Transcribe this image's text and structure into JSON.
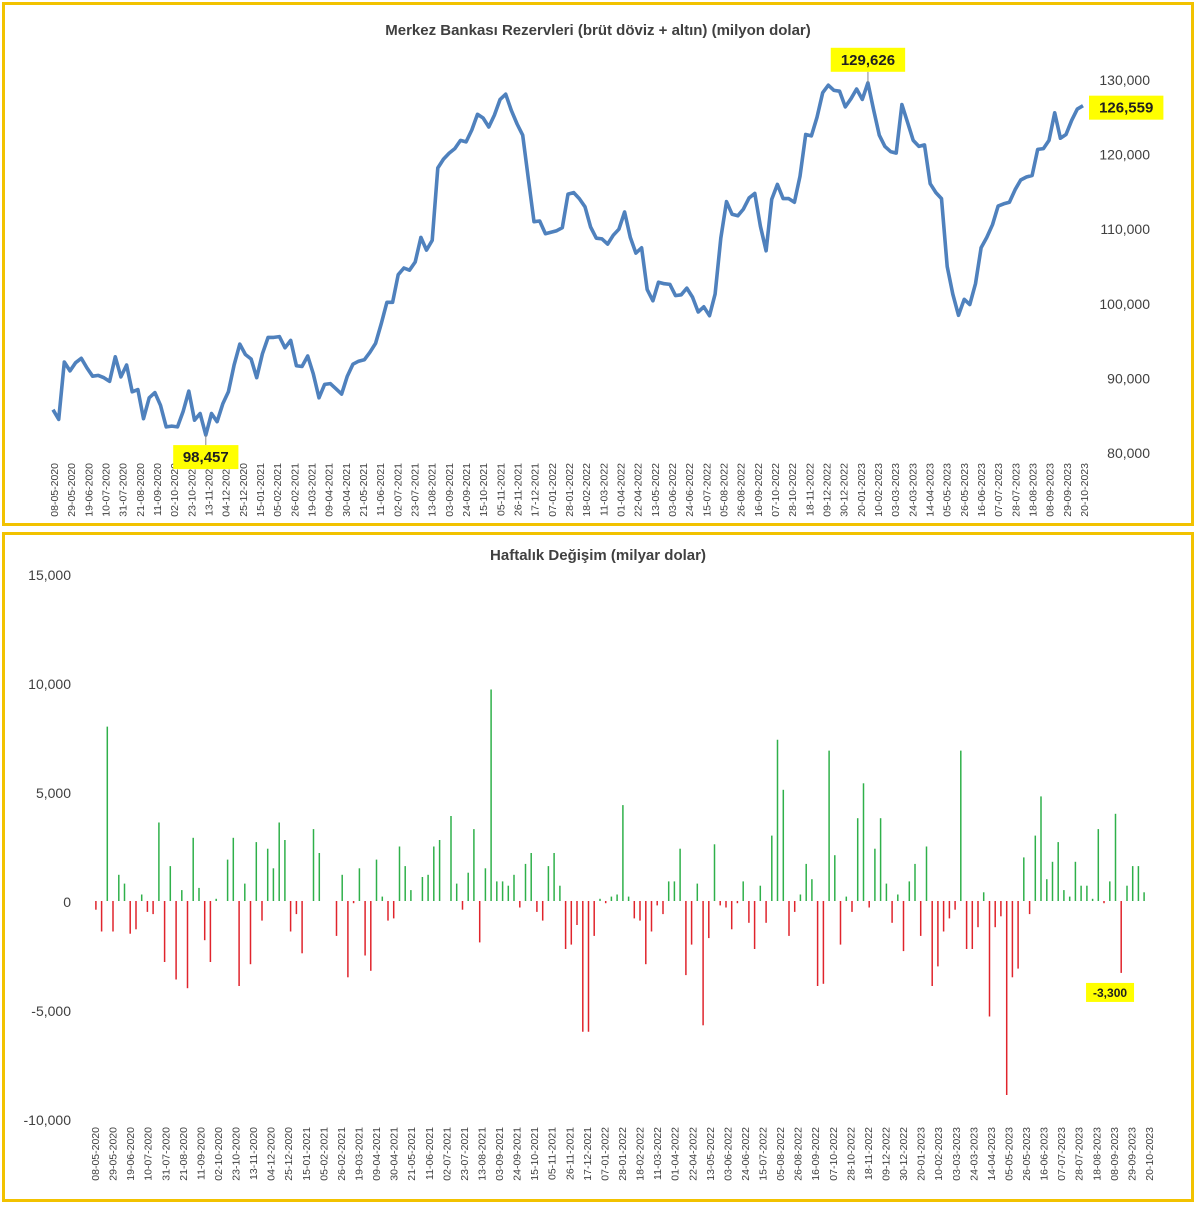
{
  "colors": {
    "line": "#4f81bd",
    "positive": "#2fb04a",
    "negative": "#e0242c",
    "frame": "#f2c200",
    "highlight": "#ffff00"
  },
  "chart_data": [
    {
      "type": "line",
      "title": "Merkez Bankası Rezervleri (brüt döviz + altın) (milyon dolar)",
      "xlabel": "",
      "ylabel": "",
      "ylim": [
        80000,
        130000
      ],
      "y_ticks": [
        "80,000",
        "90,000",
        "100,000",
        "110,000",
        "120,000",
        "130,000"
      ],
      "y_axis_side": "right",
      "grid": false,
      "x_tick_labels": [
        "08-05-2020",
        "29-05-2020",
        "19-06-2020",
        "10-07-2020",
        "31-07-2020",
        "21-08-2020",
        "11-09-2020",
        "02-10-2020",
        "23-10-2020",
        "13-11-2020",
        "04-12-2020",
        "25-12-2020",
        "15-01-2021",
        "05-02-2021",
        "26-02-2021",
        "19-03-2021",
        "09-04-2021",
        "30-04-2021",
        "21-05-2021",
        "11-06-2021",
        "02-07-2021",
        "23-07-2021",
        "13-08-2021",
        "03-09-2021",
        "24-09-2021",
        "15-10-2021",
        "05-11-2021",
        "26-11-2021",
        "17-12-2021",
        "07-01-2022",
        "28-01-2022",
        "18-02-2022",
        "11-03-2022",
        "01-04-2022",
        "22-04-2022",
        "13-05-2022",
        "03-06-2022",
        "24-06-2022",
        "15-07-2022",
        "05-08-2022",
        "26-08-2022",
        "16-09-2022",
        "07-10-2022",
        "28-10-2022",
        "18-11-2022",
        "09-12-2022",
        "30-12-2022",
        "20-01-2023",
        "10-02-2023",
        "03-03-2023",
        "24-03-2023",
        "14-04-2023",
        "05-05-2023",
        "26-05-2023",
        "16-06-2023",
        "07-07-2023",
        "28-07-2023",
        "18-08-2023",
        "08-09-2023",
        "29-09-2023",
        "20-10-2023"
      ],
      "x_tick_labels_shown": [
        "08-05-2020",
        "29-05-2020",
        "19-06-2020",
        "10-07-2020",
        "31-07-2020",
        "21-08-2020",
        "11-09-2020",
        "02-10-2020",
        "23-10-2020",
        "13-11-2020",
        "04-12-2020",
        "25-12-2020",
        "15-01-2021",
        "05-02-2021",
        "26-02-2021",
        "19-03-2021",
        "09-04-2021",
        "30-04-2021",
        "21-05-2021",
        "11-06-2021",
        "02-07-2021",
        "23-07-2021",
        "13-08-2021",
        "03-09-2021",
        "24-09-2021",
        "15-10-2021",
        "05-11-2021",
        "26-11-2021",
        "17-12-2021",
        "07-01-2022",
        "28-01-2022",
        "18-02-2022",
        "11-03-2022",
        "01-04-2022",
        "22-04-2022",
        "13-05-2022",
        "03-06-2022",
        "24-06-2022",
        "15-07-2022",
        "05-08-2022",
        "26-08-2022",
        "16-09-2022",
        "07-10-2022",
        "28-10-2022",
        "18-11-2022",
        "09-12-2022",
        "30-12-2022",
        "20-01-2023",
        "10-02-2023",
        "03-03-2023",
        "24-03-2023",
        "14-04-2023",
        "05-05-2023",
        "26-05-2023",
        "16-06-2023",
        "07-07-2023",
        "28-07-2023",
        "18-08-2023",
        "08-09-2023",
        "29-09-2023",
        "20-10-2023"
      ],
      "series": [
        {
          "values": [
            85800,
            84500,
            92200,
            91000,
            92100,
            92700,
            91400,
            90300,
            90400,
            90100,
            89600,
            92900,
            90200,
            91800,
            88200,
            88500,
            84600,
            87400,
            88100,
            86400,
            83500,
            83600,
            83500,
            85600,
            88300,
            84400,
            85300,
            82400,
            85300,
            84200,
            86600,
            88200,
            91800,
            94600,
            93200,
            92600,
            90100,
            93300,
            95500,
            95500,
            95600,
            94100,
            95100,
            91700,
            91600,
            93000,
            90600,
            87400,
            89200,
            89300,
            88600,
            87900,
            90300,
            91900,
            92300,
            92500,
            93500,
            94700,
            97300,
            100200,
            100200,
            103900,
            104800,
            104500,
            105600,
            108900,
            107200,
            108500,
            118200,
            119400,
            120200,
            120800,
            121900,
            121700,
            123300,
            125400,
            124900,
            123700,
            125300,
            127400,
            128100,
            125900,
            124100,
            122600,
            116700,
            111000,
            111100,
            109400,
            109600,
            109800,
            110200,
            114700,
            114900,
            114100,
            113000,
            110300,
            108800,
            108700,
            108000,
            109200,
            110000,
            112300,
            108900,
            106800,
            107500,
            101900,
            100400,
            102900,
            102700,
            102600,
            101100,
            101200,
            102100,
            100900,
            98900,
            99600,
            98400,
            101300,
            108800,
            113700,
            112000,
            111800,
            112700,
            114200,
            114800,
            110400,
            107100,
            114000,
            116000,
            114100,
            114100,
            113600,
            117100,
            122700,
            122500,
            125000,
            128300,
            129300,
            128600,
            128500,
            126400,
            127500,
            128800,
            127400,
            129626,
            126000,
            122600,
            121100,
            120400,
            120200,
            126700,
            124300,
            121900,
            121100,
            121300,
            116100,
            114900,
            114100,
            105000,
            101300,
            98457,
            100600,
            99900,
            102700,
            107500,
            108900,
            110600,
            113100,
            113400,
            113600,
            115300,
            116600,
            117000,
            117200,
            120700,
            120800,
            121900,
            125600,
            122200,
            122700,
            124600,
            126100,
            126559
          ]
        }
      ],
      "annotations": [
        {
          "label": "129,626",
          "value": 129626,
          "position": "max"
        },
        {
          "label": "98,457",
          "value": 98457,
          "position": "min"
        },
        {
          "label": "126,559",
          "value": 126559,
          "position": "last"
        }
      ]
    },
    {
      "type": "bar",
      "title": "Haftalık Değişim (milyar dolar)",
      "xlabel": "",
      "ylabel": "",
      "ylim": [
        -10000,
        15000
      ],
      "y_ticks": [
        "-10,000",
        "-5,000",
        "0",
        "5,000",
        "10,000",
        "15,000"
      ],
      "y_axis_side": "left",
      "grid": false,
      "x_tick_labels": [
        "08-05-2020",
        "29-05-2020",
        "19-06-2020",
        "10-07-2020",
        "31-07-2020",
        "21-08-2020",
        "11-09-2020",
        "02-10-2020",
        "23-10-2020",
        "13-11-2020",
        "04-12-2020",
        "25-12-2020",
        "15-01-2021",
        "05-02-2021",
        "26-02-2021",
        "19-03-2021",
        "09-04-2021",
        "30-04-2021",
        "21-05-2021",
        "11-06-2021",
        "02-07-2021",
        "23-07-2021",
        "13-08-2021",
        "03-09-2021",
        "24-09-2021",
        "15-10-2021",
        "05-11-2021",
        "26-11-2021",
        "17-12-2021",
        "07-01-2022",
        "28-01-2022",
        "18-02-2022",
        "11-03-2022",
        "01-04-2022",
        "22-04-2022",
        "13-05-2022",
        "03-06-2022",
        "24-06-2022",
        "15-07-2022",
        "05-08-2022",
        "26-08-2022",
        "16-09-2022",
        "07-10-2022",
        "28-10-2022",
        "18-11-2022",
        "09-12-2022",
        "30-12-2022",
        "20-01-2023",
        "10-02-2023",
        "03-03-2023",
        "24-03-2023",
        "14-04-2023",
        "05-05-2023",
        "26-05-2023",
        "16-06-2023",
        "07-07-2023",
        "28-07-2023",
        "18-08-2023",
        "08-09-2023",
        "29-09-2023",
        "20-10-2023"
      ],
      "x_tick_labels_shown": [
        "08-05-2020",
        "29-05-2020",
        "19-06-2020",
        "10-07-2020",
        "31-07-2020",
        "21-08-2020",
        "11-09-2020",
        "02-10-2020",
        "23-10-2020",
        "13-11-2020",
        "04-12-2020",
        "25-12-2020",
        "15-01-2021",
        "05-02-2021",
        "26-02-2021",
        "19-03-2021",
        "09-04-2021",
        "30-04-2021",
        "21-05-2021",
        "11-06-2021",
        "02-07-2021",
        "23-07-2021",
        "13-08-2021",
        "03-09-2021",
        "24-09-2021",
        "15-10-2021",
        "05-11-2021",
        "26-11-2021",
        "17-12-2021",
        "07-01-2022",
        "28-01-2022",
        "18-02-2022",
        "11-03-2022",
        "01-04-2022",
        "22-04-2022",
        "13-05-2022",
        "03-06-2022",
        "24-06-2022",
        "15-07-2022",
        "05-08-2022",
        "26-08-2022",
        "16-09-2022",
        "07-10-2022",
        "28-10-2022",
        "18-11-2022",
        "09-12-2022",
        "30-12-2022",
        "20-01-2023",
        "10-02-2023",
        "03-03-2023",
        "24-03-2023",
        "14-04-2023",
        "05-05-2023",
        "26-05-2023",
        "16-06-2023",
        "07-07-2023",
        "28-07-2023",
        "18-08-2023",
        "08-09-2023",
        "29-09-2023",
        "20-10-2023"
      ],
      "series": [
        {
          "values": [
            -400,
            -1400,
            8000,
            -1400,
            1200,
            800,
            -1500,
            -1300,
            300,
            -500,
            -600,
            3600,
            -2800,
            1600,
            -3600,
            500,
            -4000,
            2900,
            600,
            -1800,
            -2800,
            100,
            0,
            1900,
            2900,
            -3900,
            800,
            -2900,
            2700,
            -900,
            2400,
            1500,
            3600,
            2800,
            -1400,
            -600,
            -2400,
            0,
            3300,
            2200,
            0,
            0,
            -1600,
            1200,
            -3500,
            -100,
            1500,
            -2500,
            -3200,
            1900,
            200,
            -900,
            -800,
            2500,
            1600,
            500,
            0,
            1100,
            1200,
            2500,
            2800,
            0,
            3900,
            800,
            -400,
            1300,
            3300,
            -1900,
            1500,
            9700,
            900,
            900,
            700,
            1200,
            -300,
            1700,
            2200,
            -500,
            -900,
            1600,
            2200,
            700,
            -2200,
            -2000,
            -1100,
            -6000,
            -6000,
            -1600,
            100,
            -100,
            200,
            300,
            4400,
            200,
            -800,
            -900,
            -2900,
            -1400,
            -200,
            -600,
            900,
            900,
            2400,
            -3400,
            -2000,
            800,
            -5700,
            -1700,
            2600,
            -200,
            -300,
            -1300,
            -100,
            900,
            -1000,
            -2200,
            700,
            -1000,
            3000,
            7400,
            5100,
            -1600,
            -500,
            300,
            1700,
            1000,
            -3900,
            -3800,
            6900,
            2100,
            -2000,
            200,
            -500,
            3800,
            5400,
            -300,
            2400,
            3800,
            800,
            -1000,
            300,
            -2300,
            900,
            1700,
            -1600,
            2500,
            -3900,
            -3000,
            -1400,
            -800,
            -400,
            6900,
            -2200,
            -2200,
            -1200,
            400,
            -5300,
            -1200,
            -700,
            -8900,
            -3500,
            -3100,
            2000,
            -600,
            3000,
            4800,
            1000,
            1800,
            2700,
            500,
            200,
            1800,
            700,
            700,
            100,
            3300,
            -100,
            900,
            4000,
            -3300,
            700,
            1600,
            1600,
            400
          ]
        }
      ],
      "annotations": [
        {
          "label": "-3,300",
          "value": -3300,
          "position": "index-176"
        }
      ]
    }
  ]
}
